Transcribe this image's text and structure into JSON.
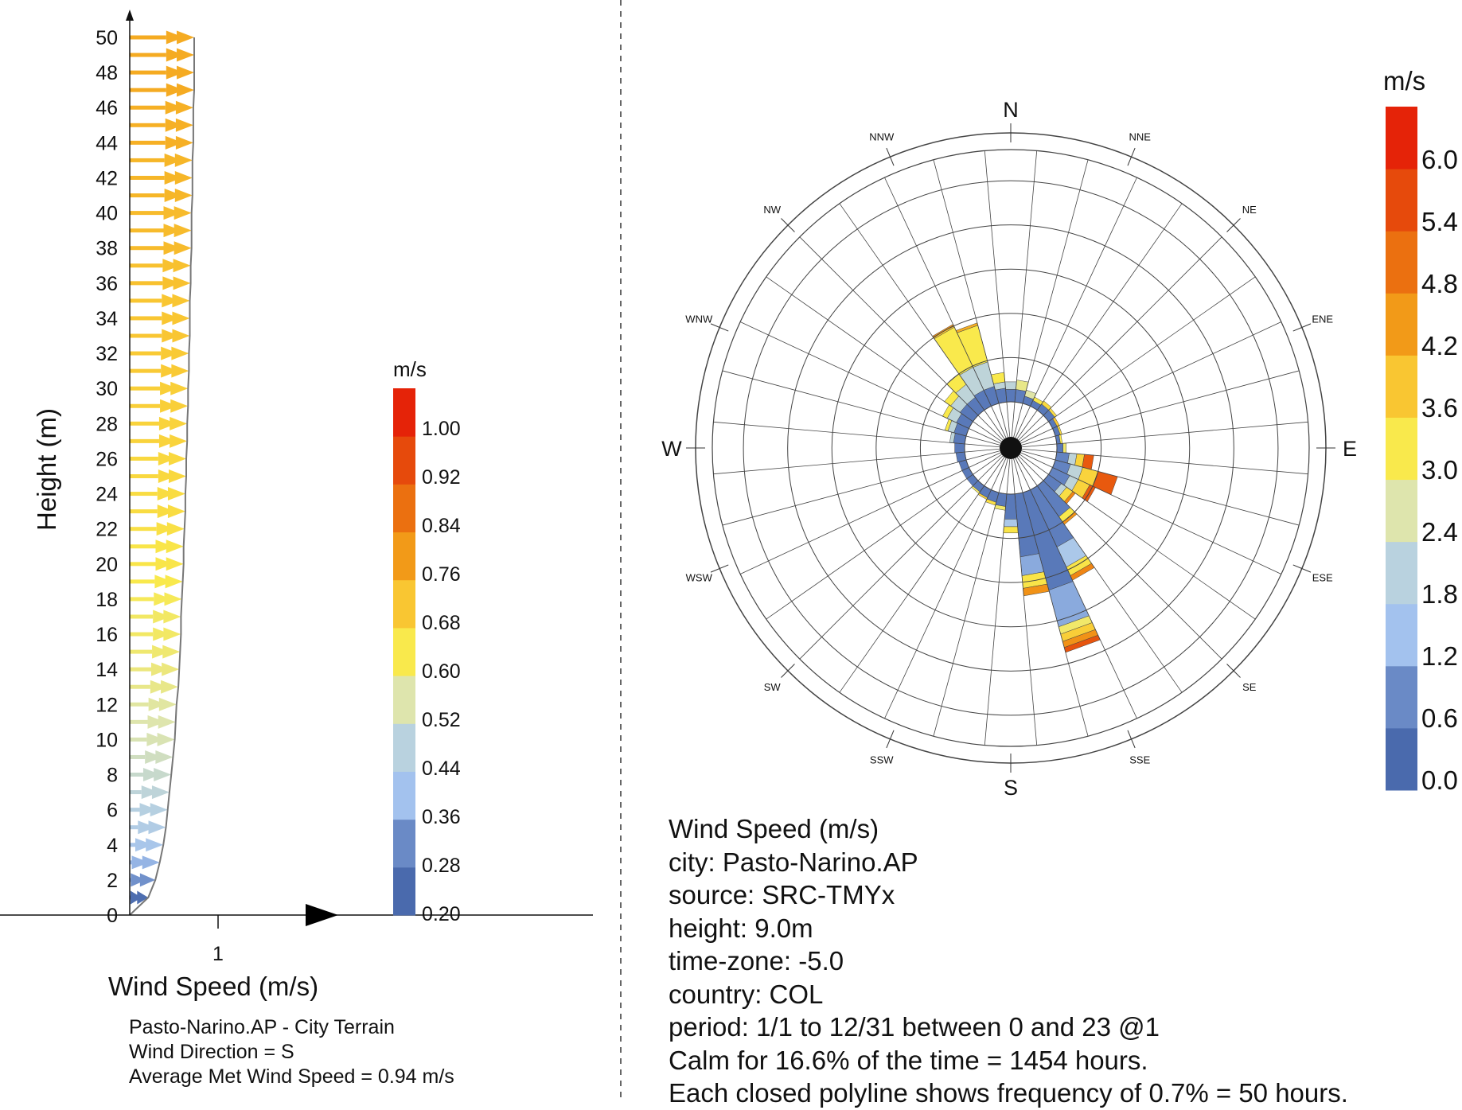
{
  "chart_data": [
    {
      "type": "line",
      "title": "",
      "xlabel": "Wind Speed (m/s)",
      "ylabel": "Height (m)",
      "x_ticks": [
        "1"
      ],
      "y_ticks": [
        0,
        2,
        4,
        6,
        8,
        10,
        12,
        14,
        16,
        18,
        20,
        22,
        24,
        26,
        28,
        30,
        32,
        34,
        36,
        38,
        40,
        42,
        44,
        46,
        48,
        50
      ],
      "heights": [
        1,
        2,
        3,
        4,
        5,
        6,
        7,
        8,
        9,
        10,
        11,
        12,
        13,
        14,
        15,
        16,
        17,
        18,
        19,
        20,
        21,
        22,
        23,
        24,
        25,
        26,
        27,
        28,
        29,
        30,
        31,
        32,
        33,
        34,
        35,
        36,
        37,
        38,
        39,
        40,
        41,
        42,
        43,
        44,
        45,
        46,
        47,
        48,
        49,
        50
      ],
      "wind_speed": [
        0.21,
        0.29,
        0.34,
        0.38,
        0.41,
        0.43,
        0.45,
        0.47,
        0.49,
        0.51,
        0.52,
        0.53,
        0.55,
        0.56,
        0.57,
        0.58,
        0.58,
        0.59,
        0.6,
        0.61,
        0.61,
        0.62,
        0.63,
        0.63,
        0.64,
        0.64,
        0.65,
        0.65,
        0.66,
        0.66,
        0.67,
        0.67,
        0.68,
        0.68,
        0.68,
        0.69,
        0.69,
        0.7,
        0.7,
        0.7,
        0.71,
        0.71,
        0.71,
        0.72,
        0.72,
        0.72,
        0.73,
        0.73,
        0.73,
        0.73
      ],
      "legend": {
        "unit": "m/s",
        "labels": [
          "1.00",
          "0.92",
          "0.84",
          "0.76",
          "0.68",
          "0.60",
          "0.52",
          "0.44",
          "0.36",
          "0.28",
          "0.20"
        ],
        "colors": [
          "#4a6aad",
          "#6a8ac6",
          "#a3c2ee",
          "#b9d2df",
          "#dee5ad",
          "#f9e94c",
          "#f9c632",
          "#f29a18",
          "#eb7010",
          "#e64a0c",
          "#e52308"
        ]
      },
      "notes": [
        "Pasto-Narino.AP - City Terrain",
        "Wind Direction = S",
        "Average Met Wind Speed = 0.94 m/s"
      ]
    },
    {
      "type": "wind rose",
      "title": "",
      "directions": [
        "N",
        "NNE",
        "NE",
        "ENE",
        "E",
        "ESE",
        "SE",
        "SSE",
        "S",
        "SSW",
        "SW",
        "WSW",
        "W",
        "WNW",
        "NW",
        "NNW"
      ],
      "sector_count": 36,
      "sectors": [
        {
          "bearing": 0,
          "segments": [
            {
              "speed": 0.3,
              "freq": 0.2
            },
            {
              "speed": 2.0,
              "freq": 0.12
            }
          ]
        },
        {
          "bearing": 10,
          "segments": [
            {
              "speed": 0.4,
              "freq": 0.2
            },
            {
              "speed": 2.8,
              "freq": 0.15
            }
          ]
        },
        {
          "bearing": 20,
          "segments": [
            {
              "speed": 0.3,
              "freq": 0.12
            },
            {
              "speed": 2.6,
              "freq": 0.1
            }
          ]
        },
        {
          "bearing": 30,
          "segments": [
            {
              "speed": 0.3,
              "freq": 0.1
            },
            {
              "speed": 3.2,
              "freq": 0.06
            }
          ]
        },
        {
          "bearing": 40,
          "segments": [
            {
              "speed": 0.3,
              "freq": 0.12
            },
            {
              "speed": 3.5,
              "freq": 0.06
            }
          ]
        },
        {
          "bearing": 50,
          "segments": [
            {
              "speed": 0.3,
              "freq": 0.12
            },
            {
              "speed": 3.4,
              "freq": 0.04
            }
          ]
        },
        {
          "bearing": 60,
          "segments": [
            {
              "speed": 0.3,
              "freq": 0.08
            },
            {
              "speed": 3.8,
              "freq": 0.04
            }
          ]
        },
        {
          "bearing": 70,
          "segments": [
            {
              "speed": 0.3,
              "freq": 0.08
            },
            {
              "speed": 3.5,
              "freq": 0.03
            }
          ]
        },
        {
          "bearing": 80,
          "segments": [
            {
              "speed": 0.3,
              "freq": 0.06
            },
            {
              "speed": 3.2,
              "freq": 0.03
            }
          ]
        },
        {
          "bearing": 90,
          "segments": [
            {
              "speed": 0.3,
              "freq": 0.1
            },
            {
              "speed": 3.0,
              "freq": 0.05
            }
          ]
        },
        {
          "bearing": 100,
          "segments": [
            {
              "speed": 0.5,
              "freq": 0.2
            },
            {
              "speed": 2.0,
              "freq": 0.12
            },
            {
              "speed": 3.6,
              "freq": 0.12
            },
            {
              "speed": 5.5,
              "freq": 0.15
            }
          ]
        },
        {
          "bearing": 110,
          "segments": [
            {
              "speed": 0.5,
              "freq": 0.25
            },
            {
              "speed": 2.0,
              "freq": 0.2
            },
            {
              "speed": 3.6,
              "freq": 0.25
            },
            {
              "speed": 5.5,
              "freq": 0.32
            }
          ]
        },
        {
          "bearing": 120,
          "segments": [
            {
              "speed": 0.5,
              "freq": 0.3
            },
            {
              "speed": 2.0,
              "freq": 0.15
            },
            {
              "speed": 3.6,
              "freq": 0.2
            },
            {
              "speed": 5.5,
              "freq": 0.1
            }
          ]
        },
        {
          "bearing": 130,
          "segments": [
            {
              "speed": 0.4,
              "freq": 0.25
            },
            {
              "speed": 2.0,
              "freq": 0.1
            },
            {
              "speed": 3.4,
              "freq": 0.12
            },
            {
              "speed": 4.8,
              "freq": 0.05
            }
          ]
        },
        {
          "bearing": 140,
          "segments": [
            {
              "speed": 0.4,
              "freq": 0.6
            },
            {
              "speed": 3.2,
              "freq": 0.1
            },
            {
              "speed": 4.6,
              "freq": 0.05
            }
          ]
        },
        {
          "bearing": 150,
          "segments": [
            {
              "speed": 0.4,
              "freq": 1.0
            },
            {
              "speed": 1.5,
              "freq": 0.35
            },
            {
              "speed": 3.3,
              "freq": 0.15
            },
            {
              "speed": 4.8,
              "freq": 0.08
            }
          ]
        },
        {
          "bearing": 160,
          "segments": [
            {
              "speed": 0.3,
              "freq": 1.6
            },
            {
              "speed": 1.0,
              "freq": 0.6
            },
            {
              "speed": 3.0,
              "freq": 0.12
            },
            {
              "speed": 3.7,
              "freq": 0.12
            },
            {
              "speed": 4.6,
              "freq": 0.1
            },
            {
              "speed": 5.6,
              "freq": 0.08
            }
          ]
        },
        {
          "bearing": 170,
          "segments": [
            {
              "speed": 0.3,
              "freq": 1.0
            },
            {
              "speed": 1.0,
              "freq": 0.3
            },
            {
              "speed": 3.3,
              "freq": 0.2
            },
            {
              "speed": 4.6,
              "freq": 0.12
            }
          ]
        },
        {
          "bearing": 180,
          "segments": [
            {
              "speed": 0.3,
              "freq": 0.4
            },
            {
              "speed": 1.5,
              "freq": 0.12
            },
            {
              "speed": 3.3,
              "freq": 0.1
            }
          ]
        },
        {
          "bearing": 190,
          "segments": [
            {
              "speed": 0.3,
              "freq": 0.2
            },
            {
              "speed": 3.0,
              "freq": 0.06
            }
          ]
        },
        {
          "bearing": 200,
          "segments": [
            {
              "speed": 0.3,
              "freq": 0.16
            },
            {
              "speed": 3.4,
              "freq": 0.05
            }
          ]
        },
        {
          "bearing": 210,
          "segments": [
            {
              "speed": 0.3,
              "freq": 0.14
            },
            {
              "speed": 3.6,
              "freq": 0.03
            }
          ]
        },
        {
          "bearing": 220,
          "segments": [
            {
              "speed": 0.3,
              "freq": 0.12
            },
            {
              "speed": 3.0,
              "freq": 0.03
            }
          ]
        },
        {
          "bearing": 230,
          "segments": [
            {
              "speed": 0.3,
              "freq": 0.12
            }
          ]
        },
        {
          "bearing": 240,
          "segments": [
            {
              "speed": 0.3,
              "freq": 0.12
            }
          ]
        },
        {
          "bearing": 250,
          "segments": [
            {
              "speed": 0.3,
              "freq": 0.12
            }
          ]
        },
        {
          "bearing": 260,
          "segments": [
            {
              "speed": 0.3,
              "freq": 0.14
            }
          ]
        },
        {
          "bearing": 270,
          "segments": [
            {
              "speed": 0.3,
              "freq": 0.16
            }
          ]
        },
        {
          "bearing": 280,
          "segments": [
            {
              "speed": 0.3,
              "freq": 0.18
            },
            {
              "speed": 2.0,
              "freq": 0.06
            }
          ]
        },
        {
          "bearing": 290,
          "segments": [
            {
              "speed": 0.3,
              "freq": 0.2
            },
            {
              "speed": 2.0,
              "freq": 0.1
            },
            {
              "speed": 3.2,
              "freq": 0.05
            }
          ]
        },
        {
          "bearing": 300,
          "segments": [
            {
              "speed": 0.3,
              "freq": 0.22
            },
            {
              "speed": 2.0,
              "freq": 0.16
            },
            {
              "speed": 3.2,
              "freq": 0.08
            }
          ]
        },
        {
          "bearing": 310,
          "segments": [
            {
              "speed": 0.3,
              "freq": 0.25
            },
            {
              "speed": 2.0,
              "freq": 0.18
            },
            {
              "speed": 3.2,
              "freq": 0.12
            }
          ]
        },
        {
          "bearing": 320,
          "segments": [
            {
              "speed": 0.3,
              "freq": 0.25
            },
            {
              "speed": 2.0,
              "freq": 0.25
            },
            {
              "speed": 3.2,
              "freq": 0.2
            }
          ]
        },
        {
          "bearing": 330,
          "segments": [
            {
              "speed": 0.3,
              "freq": 0.28
            },
            {
              "speed": 2.0,
              "freq": 0.4
            },
            {
              "speed": 3.2,
              "freq": 0.7
            },
            {
              "speed": 3.9,
              "freq": 0.03
            },
            {
              "speed": 4.6,
              "freq": 0.02
            }
          ]
        },
        {
          "bearing": 340,
          "segments": [
            {
              "speed": 0.3,
              "freq": 0.28
            },
            {
              "speed": 2.0,
              "freq": 0.4
            },
            {
              "speed": 3.2,
              "freq": 0.6
            },
            {
              "speed": 4.2,
              "freq": 0.04
            }
          ]
        },
        {
          "bearing": 350,
          "segments": [
            {
              "speed": 0.3,
              "freq": 0.22
            },
            {
              "speed": 2.0,
              "freq": 0.1
            },
            {
              "speed": 3.2,
              "freq": 0.15
            }
          ]
        }
      ],
      "legend": {
        "unit": "m/s",
        "labels": [
          "6.0",
          "5.4",
          "4.8",
          "4.2",
          "3.6",
          "3.0",
          "2.4",
          "1.8",
          "1.2",
          "0.6",
          "0.0"
        ],
        "colors": [
          "#4a6aad",
          "#6a8ac6",
          "#a3c2ee",
          "#b9d2df",
          "#dee5ad",
          "#f9e94c",
          "#f9c632",
          "#f29a18",
          "#eb7010",
          "#e64a0c",
          "#e52308"
        ]
      },
      "notes": [
        "Wind Speed (m/s)",
        "city: Pasto-Narino.AP",
        "source: SRC-TMYx",
        "height: 9.0m",
        "time-zone: -5.0",
        "country: COL",
        "period: 1/1 to 12/31 between 0 and 23 @1",
        "Calm for 16.6% of the time = 1454 hours.",
        "Each closed polyline shows frequency of 0.7% = 50 hours."
      ]
    }
  ]
}
